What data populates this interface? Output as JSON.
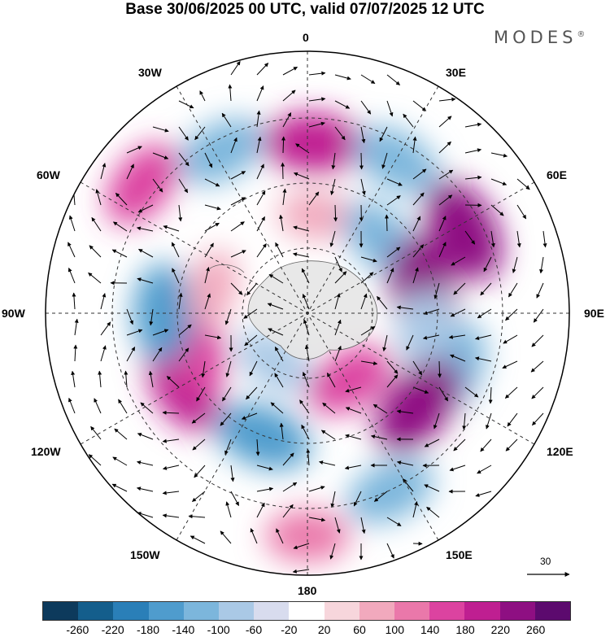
{
  "title": "Base 30/06/2025 00 UTC, valid 07/07/2025 12 UTC",
  "logo": "MODES",
  "logo_mark": "®",
  "longitude_labels": {
    "lon_0": "0",
    "lon_30e": "30E",
    "lon_60e": "60E",
    "lon_90e": "90E",
    "lon_120e": "120E",
    "lon_150e": "150E",
    "lon_180": "180",
    "lon_150w": "150W",
    "lon_120w": "120W",
    "lon_90w": "90W",
    "lon_60w": "60W",
    "lon_30w": "30W"
  },
  "reference_vector": {
    "value": "30"
  },
  "colorbar": {
    "colors": [
      "#0d3a5c",
      "#145e8c",
      "#2a7fb8",
      "#4f9ccd",
      "#7cb6dc",
      "#aac9e6",
      "#d8dcee",
      "#ffffff",
      "#f7d6dc",
      "#f1a9bd",
      "#ea78aa",
      "#dc43a0",
      "#bf1f91",
      "#8e0f82",
      "#5c0a6e"
    ],
    "ticks": [
      "-260",
      "-220",
      "-180",
      "-140",
      "-100",
      "-60",
      "-20",
      "20",
      "60",
      "100",
      "140",
      "180",
      "220",
      "260"
    ]
  },
  "anomalies": [
    {
      "lon": 2,
      "colat": 26,
      "value": 180
    },
    {
      "lon": 5,
      "colat": 15,
      "value": 60
    },
    {
      "lon": -28,
      "colat": 28,
      "value": -140
    },
    {
      "lon": -52,
      "colat": 32,
      "value": 140
    },
    {
      "lon": 30,
      "colat": 27,
      "value": -140
    },
    {
      "lon": 45,
      "colat": 16,
      "value": -140
    },
    {
      "lon": 62,
      "colat": 27,
      "value": 220
    },
    {
      "lon": 78,
      "colat": 18,
      "value": 220
    },
    {
      "lon": 110,
      "colat": 24,
      "value": -140
    },
    {
      "lon": 98,
      "colat": 18,
      "value": -100
    },
    {
      "lon": 130,
      "colat": 22,
      "value": 220
    },
    {
      "lon": 148,
      "colat": 12,
      "value": 140
    },
    {
      "lon": 155,
      "colat": 30,
      "value": -140
    },
    {
      "lon": -160,
      "colat": 20,
      "value": -180
    },
    {
      "lon": -145,
      "colat": 9,
      "value": -100
    },
    {
      "lon": -120,
      "colat": 22,
      "value": 180
    },
    {
      "lon": -108,
      "colat": 18,
      "value": 140
    },
    {
      "lon": -90,
      "colat": 22,
      "value": -180
    },
    {
      "lon": -75,
      "colat": 15,
      "value": 60
    },
    {
      "lon": 180,
      "colat": 34,
      "value": 100
    }
  ]
}
